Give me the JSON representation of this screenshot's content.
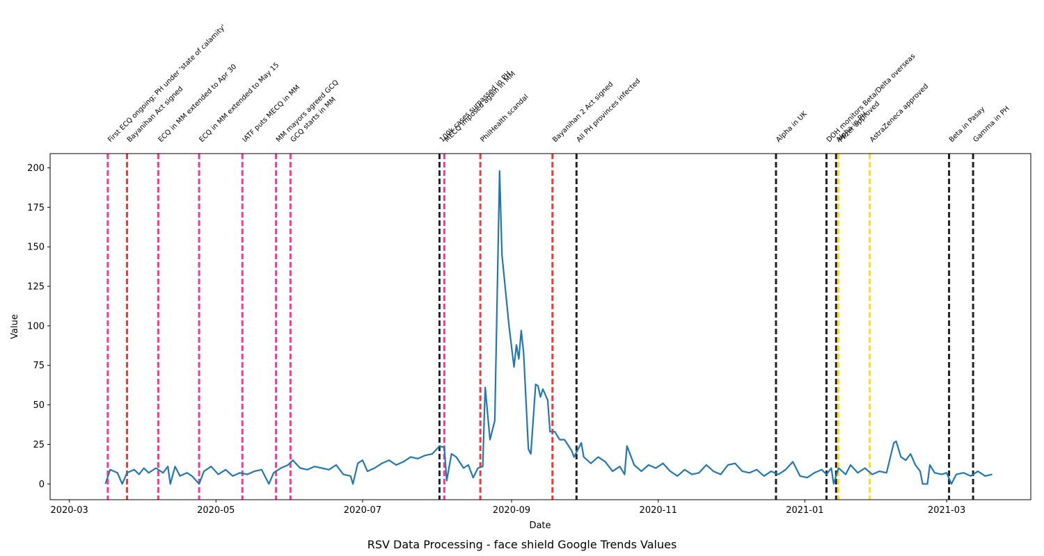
{
  "chart_data": {
    "type": "line",
    "title": "RSV Data Processing - face shield Google Trends Values",
    "xlabel": "Date",
    "ylabel": "Value",
    "xlim": [
      "2020-02-22",
      "2021-04-05"
    ],
    "ylim": [
      -10,
      209
    ],
    "grid": false,
    "x_ticks": [
      {
        "date": "2020-03-01",
        "label": "2020-03"
      },
      {
        "date": "2020-05-01",
        "label": "2020-05"
      },
      {
        "date": "2020-07-01",
        "label": "2020-07"
      },
      {
        "date": "2020-09-01",
        "label": "2020-09"
      },
      {
        "date": "2020-11-01",
        "label": "2020-11"
      },
      {
        "date": "2021-01-01",
        "label": "2021-01"
      },
      {
        "date": "2021-03-01",
        "label": "2021-03"
      }
    ],
    "y_ticks": [
      0,
      25,
      50,
      75,
      100,
      125,
      150,
      175,
      200
    ],
    "series": [
      {
        "color": "#1f77b4",
        "points": [
          [
            "2020-03-16",
            0
          ],
          [
            "2020-03-18",
            9
          ],
          [
            "2020-03-21",
            7
          ],
          [
            "2020-03-23",
            0
          ],
          [
            "2020-03-25",
            7
          ],
          [
            "2020-03-28",
            9
          ],
          [
            "2020-03-30",
            6
          ],
          [
            "2020-04-01",
            10
          ],
          [
            "2020-04-03",
            7
          ],
          [
            "2020-04-06",
            10
          ],
          [
            "2020-04-09",
            7
          ],
          [
            "2020-04-11",
            11
          ],
          [
            "2020-04-12",
            0
          ],
          [
            "2020-04-14",
            11
          ],
          [
            "2020-04-16",
            5
          ],
          [
            "2020-04-19",
            7
          ],
          [
            "2020-04-21",
            5
          ],
          [
            "2020-04-24",
            0
          ],
          [
            "2020-04-26",
            8
          ],
          [
            "2020-04-29",
            11
          ],
          [
            "2020-05-02",
            6
          ],
          [
            "2020-05-05",
            9
          ],
          [
            "2020-05-08",
            5
          ],
          [
            "2020-05-11",
            7
          ],
          [
            "2020-05-14",
            6
          ],
          [
            "2020-05-17",
            8
          ],
          [
            "2020-05-20",
            9
          ],
          [
            "2020-05-23",
            0
          ],
          [
            "2020-05-25",
            7
          ],
          [
            "2020-05-28",
            10
          ],
          [
            "2020-05-31",
            12
          ],
          [
            "2020-06-02",
            15
          ],
          [
            "2020-06-05",
            10
          ],
          [
            "2020-06-08",
            9
          ],
          [
            "2020-06-11",
            11
          ],
          [
            "2020-06-14",
            10
          ],
          [
            "2020-06-17",
            9
          ],
          [
            "2020-06-20",
            12
          ],
          [
            "2020-06-23",
            6
          ],
          [
            "2020-06-26",
            5
          ],
          [
            "2020-06-27",
            0
          ],
          [
            "2020-06-29",
            13
          ],
          [
            "2020-07-01",
            15
          ],
          [
            "2020-07-03",
            8
          ],
          [
            "2020-07-06",
            10
          ],
          [
            "2020-07-09",
            13
          ],
          [
            "2020-07-12",
            15
          ],
          [
            "2020-07-15",
            12
          ],
          [
            "2020-07-18",
            14
          ],
          [
            "2020-07-21",
            17
          ],
          [
            "2020-07-24",
            16
          ],
          [
            "2020-07-27",
            18
          ],
          [
            "2020-07-30",
            19
          ],
          [
            "2020-08-02",
            24
          ],
          [
            "2020-08-04",
            23
          ],
          [
            "2020-08-05",
            2
          ],
          [
            "2020-08-07",
            19
          ],
          [
            "2020-08-09",
            17
          ],
          [
            "2020-08-12",
            10
          ],
          [
            "2020-08-14",
            12
          ],
          [
            "2020-08-16",
            4
          ],
          [
            "2020-08-18",
            10
          ],
          [
            "2020-08-20",
            11
          ],
          [
            "2020-08-21",
            61
          ],
          [
            "2020-08-23",
            28
          ],
          [
            "2020-08-25",
            40
          ],
          [
            "2020-08-27",
            198
          ],
          [
            "2020-08-28",
            145
          ],
          [
            "2020-08-31",
            99
          ],
          [
            "2020-09-02",
            74
          ],
          [
            "2020-09-03",
            88
          ],
          [
            "2020-09-04",
            79
          ],
          [
            "2020-09-05",
            97
          ],
          [
            "2020-09-06",
            83
          ],
          [
            "2020-09-08",
            22
          ],
          [
            "2020-09-09",
            19
          ],
          [
            "2020-09-11",
            63
          ],
          [
            "2020-09-12",
            62
          ],
          [
            "2020-09-13",
            55
          ],
          [
            "2020-09-14",
            60
          ],
          [
            "2020-09-16",
            53
          ],
          [
            "2020-09-17",
            33
          ],
          [
            "2020-09-19",
            33
          ],
          [
            "2020-09-21",
            28
          ],
          [
            "2020-09-23",
            28
          ],
          [
            "2020-09-26",
            21
          ],
          [
            "2020-09-27",
            17
          ],
          [
            "2020-09-30",
            26
          ],
          [
            "2020-10-01",
            17
          ],
          [
            "2020-10-04",
            13
          ],
          [
            "2020-10-07",
            17
          ],
          [
            "2020-10-10",
            14
          ],
          [
            "2020-10-13",
            8
          ],
          [
            "2020-10-16",
            11
          ],
          [
            "2020-10-18",
            6
          ],
          [
            "2020-10-19",
            24
          ],
          [
            "2020-10-20",
            20
          ],
          [
            "2020-10-22",
            12
          ],
          [
            "2020-10-25",
            8
          ],
          [
            "2020-10-28",
            12
          ],
          [
            "2020-10-31",
            10
          ],
          [
            "2020-11-03",
            13
          ],
          [
            "2020-11-06",
            8
          ],
          [
            "2020-11-09",
            5
          ],
          [
            "2020-11-12",
            9
          ],
          [
            "2020-11-15",
            6
          ],
          [
            "2020-11-18",
            7
          ],
          [
            "2020-11-21",
            12
          ],
          [
            "2020-11-24",
            8
          ],
          [
            "2020-11-27",
            6
          ],
          [
            "2020-11-30",
            12
          ],
          [
            "2020-12-03",
            13
          ],
          [
            "2020-12-06",
            8
          ],
          [
            "2020-12-09",
            7
          ],
          [
            "2020-12-12",
            9
          ],
          [
            "2020-12-15",
            5
          ],
          [
            "2020-12-18",
            8
          ],
          [
            "2020-12-21",
            6
          ],
          [
            "2020-12-24",
            9
          ],
          [
            "2020-12-27",
            14
          ],
          [
            "2020-12-30",
            5
          ],
          [
            "2021-01-02",
            4
          ],
          [
            "2021-01-05",
            7
          ],
          [
            "2021-01-08",
            9
          ],
          [
            "2021-01-10",
            6
          ],
          [
            "2021-01-12",
            10
          ],
          [
            "2021-01-13",
            0
          ],
          [
            "2021-01-15",
            10
          ],
          [
            "2021-01-18",
            6
          ],
          [
            "2021-01-20",
            12
          ],
          [
            "2021-01-23",
            7
          ],
          [
            "2021-01-26",
            10
          ],
          [
            "2021-01-29",
            6
          ],
          [
            "2021-02-01",
            8
          ],
          [
            "2021-02-04",
            7
          ],
          [
            "2021-02-07",
            26
          ],
          [
            "2021-02-08",
            27
          ],
          [
            "2021-02-10",
            17
          ],
          [
            "2021-02-12",
            15
          ],
          [
            "2021-02-14",
            19
          ],
          [
            "2021-02-16",
            12
          ],
          [
            "2021-02-18",
            8
          ],
          [
            "2021-02-19",
            0
          ],
          [
            "2021-02-21",
            0
          ],
          [
            "2021-02-22",
            12
          ],
          [
            "2021-02-24",
            7
          ],
          [
            "2021-02-27",
            6
          ],
          [
            "2021-03-01",
            7
          ],
          [
            "2021-03-03",
            0
          ],
          [
            "2021-03-05",
            6
          ],
          [
            "2021-03-08",
            7
          ],
          [
            "2021-03-11",
            5
          ],
          [
            "2021-03-14",
            8
          ],
          [
            "2021-03-17",
            5
          ],
          [
            "2021-03-20",
            6
          ]
        ]
      }
    ],
    "events": [
      {
        "date": "2020-03-17",
        "label": "First ECQ ongoing; PH under 'state of calamity'",
        "color": "#ff3399"
      },
      {
        "date": "2020-03-25",
        "label": "Bayanihan Act signed",
        "color": "#ff3333"
      },
      {
        "date": "2020-04-07",
        "label": "ECQ in MM extended to Apr 30",
        "color": "#ff3399"
      },
      {
        "date": "2020-04-24",
        "label": "ECQ in MM extended to May 15",
        "color": "#ff3399"
      },
      {
        "date": "2020-05-12",
        "label": "IATF puts MECQ in MM",
        "color": "#ff3399"
      },
      {
        "date": "2020-05-26",
        "label": "MM mayors agreed GCQ",
        "color": "#ff3399"
      },
      {
        "date": "2020-06-01",
        "label": "GCQ starts in MM",
        "color": "#ff3399"
      },
      {
        "date": "2020-08-02",
        "label": "100k cases surpassed in PH",
        "color": "#222222"
      },
      {
        "date": "2020-08-04",
        "label": "MECQ imposed again in MM",
        "color": "#ff3399"
      },
      {
        "date": "2020-08-19",
        "label": "PhilHealth scandal",
        "color": "#ff3333"
      },
      {
        "date": "2020-09-18",
        "label": "Bayanihan 2 Act signed",
        "color": "#ff3333"
      },
      {
        "date": "2020-09-28",
        "label": "All PH provinces infected",
        "color": "#222222"
      },
      {
        "date": "2020-12-20",
        "label": "Alpha in UK",
        "color": "#222222"
      },
      {
        "date": "2021-01-10",
        "label": "DOH monitors Beta/Delta overseas",
        "color": "#222222"
      },
      {
        "date": "2021-01-14",
        "label": "Alpha in PH",
        "color": "#222222"
      },
      {
        "date": "2021-01-15",
        "label": "Pfizer approved",
        "color": "#ffdd22"
      },
      {
        "date": "2021-01-28",
        "label": "AstraZeneca approved",
        "color": "#ffdd22"
      },
      {
        "date": "2021-03-02",
        "label": "Beta in Pasay",
        "color": "#222222"
      },
      {
        "date": "2021-03-12",
        "label": "Gamma in PH",
        "color": "#222222"
      }
    ]
  }
}
